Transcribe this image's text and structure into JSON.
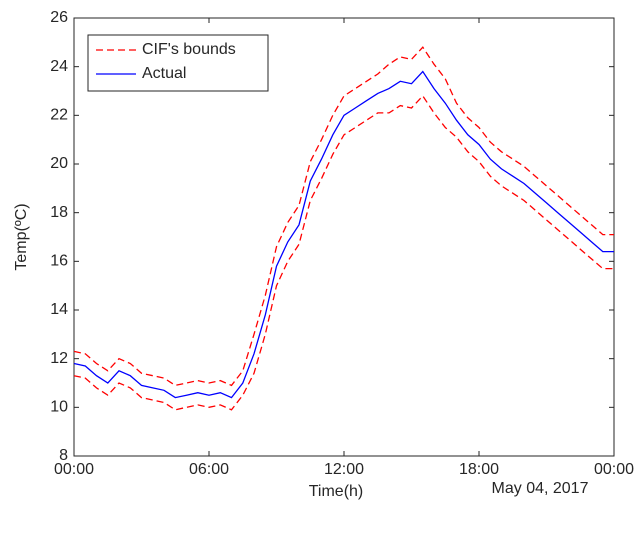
{
  "chart_data": {
    "type": "line",
    "x_label": "Time(h)",
    "y_label": "Temp(ºC)",
    "date_label": "May 04, 2017",
    "x": [
      0,
      0.5,
      1,
      1.5,
      2,
      2.5,
      3,
      3.5,
      4,
      4.5,
      5,
      5.5,
      6,
      6.5,
      7,
      7.5,
      8,
      8.5,
      9,
      9.5,
      10,
      10.5,
      11,
      11.5,
      12,
      12.5,
      13,
      13.5,
      14,
      14.5,
      15,
      15.5,
      16,
      16.5,
      17,
      17.5,
      18,
      18.5,
      19,
      19.5,
      20,
      20.5,
      21,
      21.5,
      22,
      22.5,
      23,
      23.5,
      24
    ],
    "xlim": [
      0,
      24
    ],
    "xticks": [
      {
        "value": 0,
        "label": "00:00"
      },
      {
        "value": 6,
        "label": "06:00"
      },
      {
        "value": 12,
        "label": "12:00"
      },
      {
        "value": 18,
        "label": "18:00"
      },
      {
        "value": 24,
        "label": "00:00"
      }
    ],
    "ylim": [
      8,
      26
    ],
    "yticks": [
      8,
      10,
      12,
      14,
      16,
      18,
      20,
      22,
      24,
      26
    ],
    "legend": "top-left",
    "series": [
      {
        "name": "CIF's bounds",
        "color": "#ff0000",
        "style": "dashed",
        "upper": [
          12.3,
          12.2,
          11.8,
          11.5,
          12.0,
          11.8,
          11.4,
          11.3,
          11.2,
          10.9,
          11.0,
          11.1,
          11.0,
          11.1,
          10.9,
          11.5,
          13.0,
          14.6,
          16.6,
          17.6,
          18.3,
          20.1,
          21.0,
          22.0,
          22.8,
          23.1,
          23.4,
          23.7,
          24.1,
          24.4,
          24.3,
          24.8,
          24.1,
          23.5,
          22.5,
          21.9,
          21.5,
          20.9,
          20.5,
          20.2,
          19.9,
          19.5,
          19.1,
          18.7,
          18.3,
          17.9,
          17.5,
          17.1,
          17.1
        ],
        "lower": [
          11.3,
          11.2,
          10.8,
          10.5,
          11.0,
          10.8,
          10.4,
          10.3,
          10.2,
          9.9,
          10.0,
          10.1,
          10.0,
          10.1,
          9.9,
          10.5,
          11.4,
          13.0,
          15.0,
          16.0,
          16.7,
          18.5,
          19.4,
          20.4,
          21.2,
          21.5,
          21.8,
          22.1,
          22.1,
          22.4,
          22.3,
          22.8,
          22.1,
          21.5,
          21.1,
          20.5,
          20.1,
          19.5,
          19.1,
          18.8,
          18.5,
          18.1,
          17.7,
          17.3,
          16.9,
          16.5,
          16.1,
          15.7,
          15.7
        ]
      },
      {
        "name": "Actual",
        "color": "#0000ff",
        "style": "solid",
        "values": [
          11.8,
          11.7,
          11.3,
          11.0,
          11.5,
          11.3,
          10.9,
          10.8,
          10.7,
          10.4,
          10.5,
          10.6,
          10.5,
          10.6,
          10.4,
          11.0,
          12.2,
          13.8,
          15.8,
          16.8,
          17.5,
          19.3,
          20.2,
          21.2,
          22.0,
          22.3,
          22.6,
          22.9,
          23.1,
          23.4,
          23.3,
          23.8,
          23.1,
          22.5,
          21.8,
          21.2,
          20.8,
          20.2,
          19.8,
          19.5,
          19.2,
          18.8,
          18.4,
          18.0,
          17.6,
          17.2,
          16.8,
          16.4,
          16.4
        ]
      }
    ]
  }
}
